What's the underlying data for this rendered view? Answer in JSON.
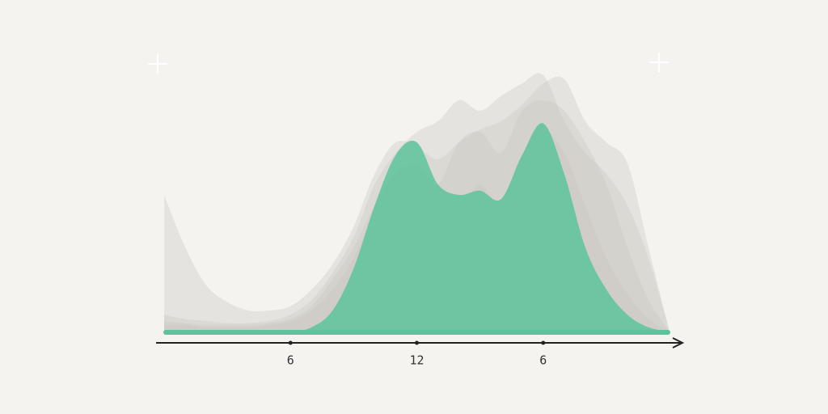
{
  "chart_data": {
    "type": "area",
    "x": [
      0,
      1,
      2,
      3,
      4,
      5,
      6,
      7,
      8,
      9,
      10,
      11,
      12,
      13,
      14,
      15,
      16,
      17,
      18,
      19,
      20,
      21,
      22,
      23,
      24
    ],
    "xlim": [
      0,
      24
    ],
    "xticks": [
      6,
      12,
      {
        "value": 18,
        "label": "6"
      }
    ],
    "ylim": [
      0,
      130
    ],
    "series": [
      {
        "color": "#c9c6c1",
        "values": [
          65,
          40,
          22,
          14,
          10,
          10,
          12,
          20,
          32,
          50,
          75,
          90,
          88,
          82,
          90,
          96,
          100,
          108,
          118,
          120,
          100,
          90,
          80,
          40,
          0
        ]
      },
      {
        "color": "#c9c6c1",
        "values": [
          8,
          6,
          5,
          4,
          4,
          5,
          8,
          15,
          28,
          45,
          70,
          85,
          95,
          100,
          110,
          105,
          112,
          118,
          122,
          100,
          85,
          75,
          60,
          35,
          0
        ]
      },
      {
        "color": "#c9c6c1",
        "values": [
          5,
          4,
          3,
          3,
          3,
          4,
          6,
          12,
          25,
          40,
          60,
          75,
          80,
          70,
          90,
          95,
          85,
          105,
          110,
          105,
          90,
          70,
          40,
          15,
          0
        ]
      },
      {
        "color": "#c9c6c1",
        "values": [
          3,
          3,
          2,
          2,
          2,
          3,
          5,
          10,
          20,
          35,
          55,
          65,
          62,
          55,
          58,
          70,
          60,
          80,
          95,
          85,
          60,
          35,
          18,
          6,
          0
        ]
      },
      {
        "color": "#5dc39a",
        "values": [
          0,
          0,
          0,
          0,
          0,
          0,
          0,
          2,
          10,
          30,
          60,
          84,
          90,
          70,
          65,
          67,
          63,
          84,
          99,
          75,
          40,
          20,
          8,
          2,
          0
        ]
      }
    ]
  }
}
